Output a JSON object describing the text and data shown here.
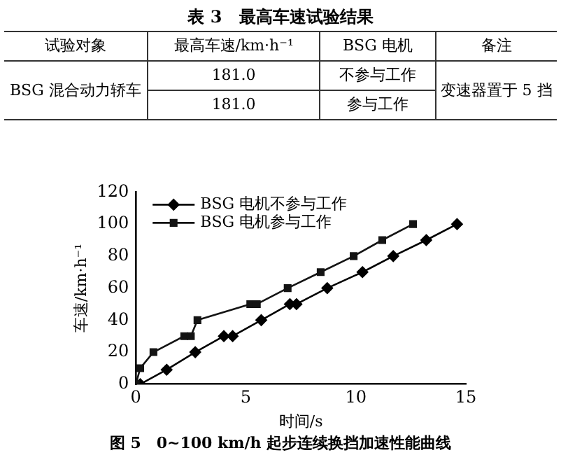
{
  "chart_data": [
    {
      "type": "other",
      "title": "表 3　最高车速试验结果",
      "annotations": [
        "试验对象",
        "最高车速/km·h⁻¹",
        "BSG 电机",
        "备注",
        "BSG 混合动力轿车",
        "181.0",
        "不参与工作",
        "变速器置于 5 挡",
        "181.0",
        "参与工作"
      ]
    },
    {
      "type": "line",
      "title": "图 5　0~100 km/h 起步连续换挡加速性能曲线",
      "xlabel": "时间/s",
      "ylabel": "车速/km·h⁻¹",
      "xlim": [
        0,
        15
      ],
      "xticks": [
        0,
        5,
        10,
        15
      ],
      "ylim": [
        0,
        120
      ],
      "yticks": [
        0,
        20,
        40,
        60,
        80,
        100,
        120
      ],
      "grid": false,
      "legend": "top left",
      "series": [
        {
          "name": "BSG 电机不参与工作",
          "color": "#000000",
          "marker": "diamond",
          "x": [
            0,
            0.2,
            1.4,
            2.7,
            4.0,
            4.4,
            5.7,
            7.0,
            7.3,
            8.7,
            10.3,
            11.7,
            13.2,
            14.6
          ],
          "values": [
            0,
            0,
            9,
            20,
            30,
            30,
            40,
            50,
            50,
            60,
            70,
            80,
            90,
            100
          ]
        },
        {
          "name": "BSG 电机参与工作",
          "color": "#141414",
          "marker": "square",
          "x": [
            0,
            0.2,
            0.8,
            2.2,
            2.5,
            2.8,
            5.2,
            5.5,
            6.9,
            8.4,
            9.9,
            11.2,
            12.6
          ],
          "values": [
            0,
            10,
            20,
            30,
            30,
            40,
            50,
            50,
            60,
            70,
            80,
            90,
            100
          ]
        }
      ]
    }
  ]
}
